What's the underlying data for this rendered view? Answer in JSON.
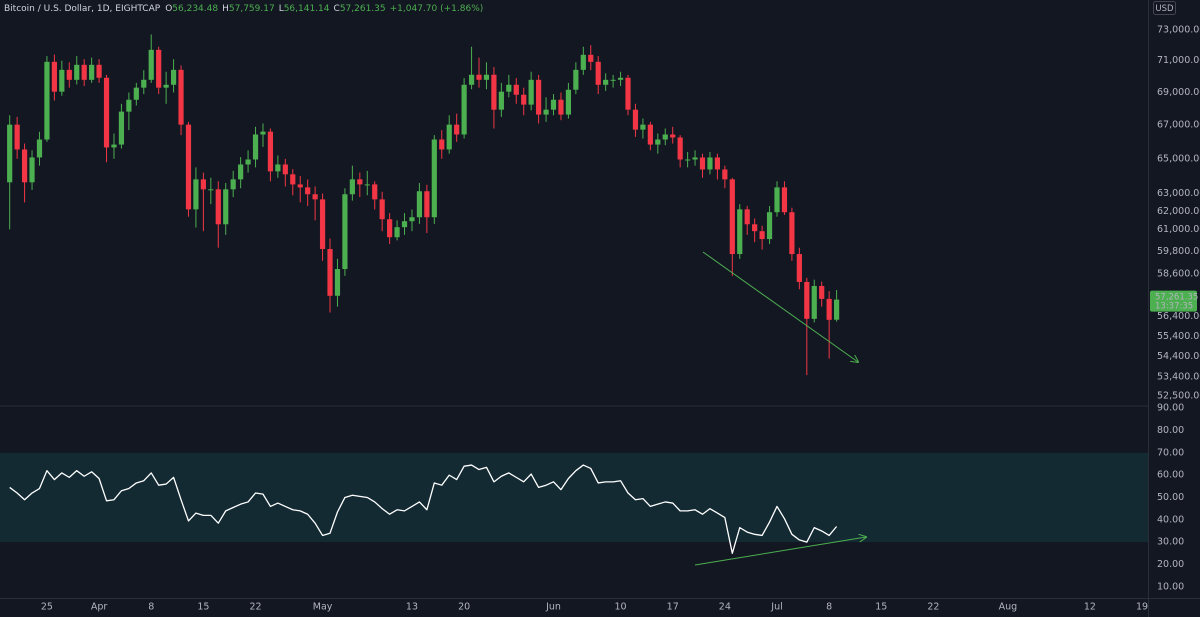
{
  "chart_data": [
    {
      "type": "candlestick",
      "title": "Bitcoin / U.S. Dollar, 1D, EIGHTCAP",
      "legend": {
        "open_label": "O",
        "open": "56,234.48",
        "high_label": "H",
        "high": "57,759.17",
        "low_label": "L",
        "low": "56,141.14",
        "close_label": "C",
        "close": "57,261.35",
        "change": "+1,047.70 (+1.86%)"
      },
      "currency": "USD",
      "last_price_label": "57,261.35",
      "countdown": "13:37:35",
      "up_color": "#4caf50",
      "down_color": "#f23645",
      "log_scale": true,
      "grid": false,
      "xlim": [
        -6.3,
        147.8
      ],
      "ylim": [
        52080,
        74990
      ],
      "yticks": [
        {
          "value": 73000,
          "label": "73,000.00"
        },
        {
          "value": 71000,
          "label": "71,000.00"
        },
        {
          "value": 69000,
          "label": "69,000.00"
        },
        {
          "value": 67000,
          "label": "67,000.00"
        },
        {
          "value": 65000,
          "label": "65,000.00"
        },
        {
          "value": 63000,
          "label": "63,000.00"
        },
        {
          "value": 62000,
          "label": "62,000.00"
        },
        {
          "value": 61000,
          "label": "61,000.00"
        },
        {
          "value": 59800,
          "label": "59,800.00"
        },
        {
          "value": 58600,
          "label": "58,600.00"
        },
        {
          "value": 56400,
          "label": "56,400.00"
        },
        {
          "value": 55400,
          "label": "55,400.00"
        },
        {
          "value": 54400,
          "label": "54,400.00"
        },
        {
          "value": 53400,
          "label": "53,400.00"
        },
        {
          "value": 52500,
          "label": "52,500.00"
        }
      ],
      "x": [
        -5,
        -4,
        -3,
        -2,
        -1,
        0,
        1,
        2,
        3,
        4,
        5,
        6,
        7,
        8,
        9,
        10,
        11,
        12,
        13,
        14,
        15,
        16,
        17,
        18,
        19,
        20,
        21,
        22,
        23,
        24,
        25,
        26,
        27,
        28,
        29,
        30,
        31,
        32,
        33,
        34,
        35,
        36,
        37,
        38,
        39,
        40,
        41,
        42,
        43,
        44,
        45,
        46,
        47,
        48,
        49,
        50,
        51,
        52,
        53,
        54,
        55,
        56,
        57,
        58,
        59,
        60,
        61,
        62,
        63,
        64,
        65,
        66,
        67,
        68,
        69,
        70,
        71,
        72,
        73,
        74,
        75,
        76,
        77,
        78,
        79,
        80,
        81,
        82,
        83,
        84,
        85,
        86,
        87,
        88,
        89,
        90,
        91,
        92,
        93,
        94,
        95,
        96,
        97,
        98,
        99,
        100,
        101,
        102,
        103,
        104,
        105,
        106
      ],
      "open": [
        63640,
        67030,
        65550,
        63640,
        65080,
        66140,
        70930,
        69050,
        70420,
        69790,
        70740,
        69790,
        70740,
        69920,
        65670,
        65840,
        67820,
        68550,
        69300,
        69790,
        71700,
        69300,
        69480,
        70420,
        67030,
        62110,
        63810,
        63240,
        63240,
        61280,
        63240,
        63810,
        64670,
        64960,
        66440,
        66610,
        64270,
        64670,
        64100,
        63520,
        63350,
        62960,
        62670,
        59930,
        57460,
        58860,
        62960,
        63810,
        63520,
        63520,
        62670,
        61560,
        60570,
        61120,
        61450,
        61670,
        63130,
        61670,
        66140,
        65550,
        67030,
        66440,
        69480,
        70110,
        69790,
        70110,
        67940,
        69050,
        69480,
        68860,
        68250,
        69790,
        67640,
        67940,
        68550,
        67640,
        69170,
        70420,
        71380,
        70930,
        69480,
        69790,
        69790,
        69920,
        67940,
        66730,
        67030,
        65840,
        66140,
        66440,
        66260,
        64960,
        64960,
        65080,
        64380,
        65080,
        64380,
        63810,
        59660,
        62110,
        61280,
        60900,
        60470,
        61950,
        63350,
        61950,
        59660,
        58180,
        56280,
        57970,
        57300,
        56234.48
      ],
      "high": [
        67600,
        67500,
        65900,
        65500,
        66600,
        71300,
        71400,
        71000,
        70900,
        71300,
        71100,
        71200,
        71100,
        70100,
        66500,
        68300,
        69000,
        69600,
        70400,
        72700,
        71900,
        70300,
        71100,
        70700,
        67200,
        64500,
        64200,
        63900,
        63700,
        63600,
        64300,
        65100,
        65500,
        66900,
        67100,
        66800,
        65200,
        65000,
        64400,
        64000,
        63800,
        63400,
        63000,
        60500,
        59400,
        63300,
        64600,
        64200,
        64300,
        63700,
        63100,
        61900,
        61500,
        61900,
        62100,
        63600,
        63500,
        66400,
        66700,
        67600,
        67700,
        69900,
        71900,
        71200,
        70900,
        70600,
        69600,
        70100,
        69900,
        69300,
        70300,
        70100,
        68700,
        68900,
        69000,
        69600,
        70900,
        71900,
        72000,
        71300,
        70200,
        70100,
        70300,
        70100,
        68300,
        67400,
        67200,
        66500,
        66800,
        66900,
        66400,
        65400,
        65500,
        65300,
        65400,
        65300,
        64600,
        63900,
        62400,
        62300,
        61600,
        61200,
        62300,
        63700,
        63700,
        62200,
        60000,
        58400,
        58300,
        58200,
        57700,
        57759.17
      ],
      "low": [
        61000,
        65000,
        62500,
        63200,
        64600,
        66000,
        68500,
        68800,
        69300,
        69500,
        69400,
        69600,
        69600,
        64800,
        65000,
        65600,
        66700,
        68200,
        68900,
        69600,
        68900,
        68300,
        69000,
        66400,
        61700,
        61100,
        60900,
        62400,
        60000,
        60700,
        62800,
        63300,
        64200,
        64500,
        65700,
        63700,
        63900,
        63400,
        62900,
        62500,
        62300,
        61500,
        59300,
        56600,
        56900,
        58500,
        62600,
        62800,
        62900,
        62100,
        60900,
        60200,
        60400,
        60700,
        60900,
        61300,
        60800,
        61300,
        65000,
        65300,
        66000,
        66200,
        69200,
        69300,
        69200,
        66800,
        67500,
        68700,
        68300,
        67600,
        67900,
        67100,
        67200,
        67600,
        67300,
        67400,
        68900,
        70100,
        70400,
        68900,
        69100,
        69300,
        69400,
        67600,
        66300,
        66200,
        65500,
        65300,
        65800,
        65900,
        64500,
        64500,
        64600,
        63900,
        64100,
        63800,
        63300,
        58500,
        59400,
        60700,
        60300,
        59900,
        60200,
        61700,
        61800,
        59300,
        57800,
        53500,
        56100,
        56900,
        54300,
        56141.14
      ],
      "close": [
        67030,
        65550,
        63640,
        65080,
        66140,
        70930,
        69050,
        70420,
        69790,
        70740,
        69790,
        70740,
        69920,
        65670,
        65840,
        67820,
        68550,
        69300,
        69790,
        71700,
        69300,
        69480,
        70420,
        67030,
        62110,
        63810,
        63240,
        63240,
        61280,
        63240,
        63810,
        64670,
        64960,
        66440,
        66610,
        64270,
        64670,
        64100,
        63520,
        63350,
        62960,
        62670,
        59930,
        57460,
        58860,
        62960,
        63810,
        63520,
        63520,
        62670,
        61560,
        60570,
        61120,
        61450,
        61670,
        63130,
        61670,
        66140,
        65550,
        67030,
        66440,
        69480,
        70110,
        69790,
        70110,
        67940,
        69050,
        69480,
        68860,
        68250,
        69790,
        67640,
        67940,
        68550,
        67640,
        69170,
        70420,
        71380,
        70930,
        69480,
        69790,
        69790,
        69920,
        67940,
        66730,
        67030,
        65840,
        66140,
        66440,
        66260,
        64960,
        64960,
        65080,
        64380,
        65080,
        64380,
        63810,
        59660,
        62110,
        61280,
        60900,
        60470,
        61950,
        63350,
        61950,
        59660,
        58180,
        56280,
        57970,
        57300,
        56230,
        57261.35
      ]
    },
    {
      "type": "line",
      "color": "#ffffff",
      "band": [
        30,
        70
      ],
      "band_color": "#132a33",
      "grid": false,
      "xlim": [
        -6.3,
        147.8
      ],
      "ylim": [
        5,
        90.5
      ],
      "yticks": [
        {
          "value": 90,
          "label": "90.00"
        },
        {
          "value": 80,
          "label": "80.00"
        },
        {
          "value": 70,
          "label": "70.00"
        },
        {
          "value": 60,
          "label": "60.00"
        },
        {
          "value": 50,
          "label": "50.00"
        },
        {
          "value": 40,
          "label": "40.00"
        },
        {
          "value": 30,
          "label": "30.00"
        },
        {
          "value": 20,
          "label": "20.00"
        },
        {
          "value": 10,
          "label": "10.00"
        }
      ],
      "xticks": [
        {
          "value": 0,
          "label": "25"
        },
        {
          "value": 7,
          "label": "Apr"
        },
        {
          "value": 14,
          "label": "8"
        },
        {
          "value": 21,
          "label": "15"
        },
        {
          "value": 28,
          "label": "22"
        },
        {
          "value": 37,
          "label": "May"
        },
        {
          "value": 49,
          "label": "13"
        },
        {
          "value": 56,
          "label": "20"
        },
        {
          "value": 68,
          "label": "Jun"
        },
        {
          "value": 77,
          "label": "10"
        },
        {
          "value": 84,
          "label": "17"
        },
        {
          "value": 91,
          "label": "24"
        },
        {
          "value": 98,
          "label": "Jul"
        },
        {
          "value": 105,
          "label": "8"
        },
        {
          "value": 112,
          "label": "15"
        },
        {
          "value": 119,
          "label": "22"
        },
        {
          "value": 129,
          "label": "Aug"
        },
        {
          "value": 140,
          "label": "12"
        },
        {
          "value": 147,
          "label": "19"
        }
      ],
      "x": [
        -5,
        -4,
        -3,
        -2,
        -1,
        0,
        1,
        2,
        3,
        4,
        5,
        6,
        7,
        8,
        9,
        10,
        11,
        12,
        13,
        14,
        15,
        16,
        17,
        18,
        19,
        20,
        21,
        22,
        23,
        24,
        25,
        26,
        27,
        28,
        29,
        30,
        31,
        32,
        33,
        34,
        35,
        36,
        37,
        38,
        39,
        40,
        41,
        42,
        43,
        44,
        45,
        46,
        47,
        48,
        49,
        50,
        51,
        52,
        53,
        54,
        55,
        56,
        57,
        58,
        59,
        60,
        61,
        62,
        63,
        64,
        65,
        66,
        67,
        68,
        69,
        70,
        71,
        72,
        73,
        74,
        75,
        76,
        77,
        78,
        79,
        80,
        81,
        82,
        83,
        84,
        85,
        86,
        87,
        88,
        89,
        90,
        91,
        92,
        93,
        94,
        95,
        96,
        97,
        98,
        99,
        100,
        101,
        102,
        103,
        104,
        105,
        106
      ],
      "values": [
        54.5,
        52,
        49,
        52,
        54,
        62,
        58,
        61,
        59,
        62,
        59.5,
        61.5,
        58.5,
        48.5,
        49,
        53,
        54,
        56.5,
        57.5,
        61,
        55.5,
        56,
        59,
        49,
        39.5,
        43,
        42,
        42,
        38.5,
        44,
        45.5,
        47,
        48,
        52,
        51.5,
        46,
        47.5,
        46,
        44.5,
        44,
        42.5,
        38.5,
        33,
        34,
        43.5,
        50,
        51,
        50.5,
        50,
        48,
        45,
        42.5,
        44.5,
        44,
        46,
        48,
        44.5,
        56.5,
        55.5,
        60,
        58,
        64,
        64.5,
        62.5,
        63.5,
        57,
        59.5,
        61,
        59,
        57,
        60.5,
        54.5,
        55.5,
        57,
        53.5,
        58.5,
        62,
        64.5,
        63,
        56.5,
        57,
        57,
        57.5,
        52,
        49,
        49.5,
        46,
        47,
        48,
        47.5,
        44,
        44,
        44.5,
        42.5,
        45,
        43,
        41,
        25,
        36.5,
        34.5,
        33.5,
        33,
        39,
        46,
        40.5,
        33.5,
        31,
        30,
        36.5,
        35,
        33,
        37
      ]
    }
  ]
}
